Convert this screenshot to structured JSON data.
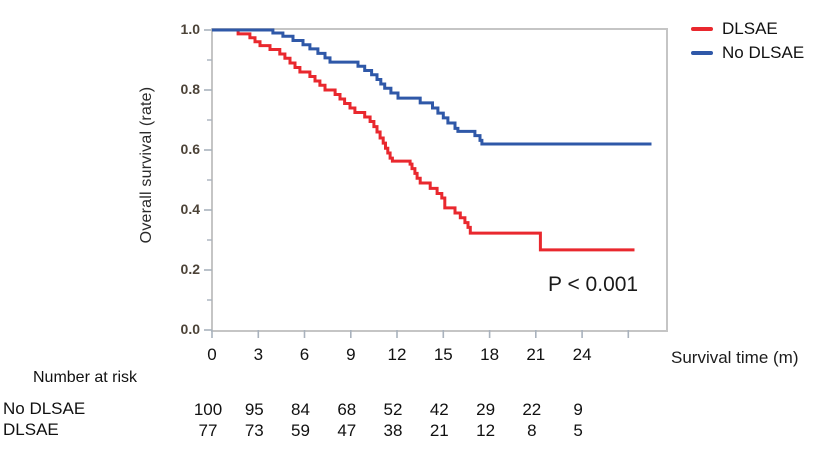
{
  "chart_data": {
    "type": "line",
    "subtype": "kaplan-meier-step",
    "title": "",
    "xlabel": "Survival time (m)",
    "ylabel": "Overall survival (rate)",
    "xlim": [
      0,
      29.5
    ],
    "ylim": [
      0.0,
      1.0
    ],
    "grid": false,
    "legend_position": "top-right-outside",
    "annotation": "P < 0.001",
    "yticks": [
      1.0,
      0.8,
      0.6,
      0.4,
      0.2,
      0.0
    ],
    "ytick_labels": [
      "1.0",
      "0.8",
      "0.6",
      "0.4",
      "0.2",
      "0.0"
    ],
    "yticks_minor": [
      0.9,
      0.7,
      0.5,
      0.3,
      0.1
    ],
    "xticks": [
      0,
      3,
      6,
      9,
      12,
      15,
      18,
      21,
      24,
      27
    ],
    "xtick_labels": [
      "0",
      "3",
      "6",
      "9",
      "12",
      "15",
      "18",
      "21",
      "24",
      ""
    ],
    "series": [
      {
        "name": "DLSAE",
        "color": "#e9282e",
        "end_t": 27.4,
        "steps": [
          [
            0,
            1.0
          ],
          [
            1.69,
            0.987
          ],
          [
            2.46,
            0.974
          ],
          [
            2.79,
            0.961
          ],
          [
            3.11,
            0.948
          ],
          [
            3.76,
            0.935
          ],
          [
            4.4,
            0.92
          ],
          [
            4.73,
            0.906
          ],
          [
            5.06,
            0.89
          ],
          [
            5.38,
            0.875
          ],
          [
            5.7,
            0.86
          ],
          [
            6.35,
            0.845
          ],
          [
            6.68,
            0.83
          ],
          [
            7.0,
            0.816
          ],
          [
            7.33,
            0.8
          ],
          [
            7.98,
            0.785
          ],
          [
            8.3,
            0.77
          ],
          [
            8.6,
            0.755
          ],
          [
            8.95,
            0.74
          ],
          [
            9.27,
            0.725
          ],
          [
            9.9,
            0.71
          ],
          [
            10.25,
            0.695
          ],
          [
            10.5,
            0.678
          ],
          [
            10.7,
            0.66
          ],
          [
            10.9,
            0.64
          ],
          [
            11.1,
            0.623
          ],
          [
            11.25,
            0.606
          ],
          [
            11.4,
            0.59
          ],
          [
            11.55,
            0.573
          ],
          [
            11.7,
            0.563
          ],
          [
            12.85,
            0.553
          ],
          [
            12.97,
            0.538
          ],
          [
            13.16,
            0.522
          ],
          [
            13.3,
            0.506
          ],
          [
            13.5,
            0.49
          ],
          [
            14.15,
            0.472
          ],
          [
            14.6,
            0.455
          ],
          [
            14.9,
            0.44
          ],
          [
            15.1,
            0.407
          ],
          [
            15.76,
            0.39
          ],
          [
            16.1,
            0.374
          ],
          [
            16.4,
            0.358
          ],
          [
            16.6,
            0.342
          ],
          [
            16.75,
            0.323
          ],
          [
            21.3,
            0.267
          ]
        ]
      },
      {
        "name": "No DLSAE",
        "color": "#2f58a8",
        "end_t": 28.5,
        "steps": [
          [
            0,
            1.0
          ],
          [
            3.95,
            0.99
          ],
          [
            4.6,
            0.979
          ],
          [
            5.25,
            0.965
          ],
          [
            5.9,
            0.951
          ],
          [
            6.35,
            0.937
          ],
          [
            6.87,
            0.922
          ],
          [
            7.33,
            0.907
          ],
          [
            7.65,
            0.893
          ],
          [
            9.47,
            0.879
          ],
          [
            9.9,
            0.865
          ],
          [
            10.35,
            0.851
          ],
          [
            10.7,
            0.835
          ],
          [
            10.95,
            0.82
          ],
          [
            11.2,
            0.806
          ],
          [
            11.6,
            0.79
          ],
          [
            12.06,
            0.773
          ],
          [
            13.5,
            0.757
          ],
          [
            14.3,
            0.74
          ],
          [
            14.65,
            0.723
          ],
          [
            15.0,
            0.707
          ],
          [
            15.3,
            0.69
          ],
          [
            15.76,
            0.672
          ],
          [
            15.95,
            0.662
          ],
          [
            17.05,
            0.648
          ],
          [
            17.38,
            0.632
          ],
          [
            17.5,
            0.62
          ]
        ]
      }
    ],
    "number_at_risk": {
      "header_label": "Number at risk",
      "times": [
        0,
        3,
        6,
        9,
        12,
        15,
        18,
        21,
        24
      ],
      "rows": [
        {
          "label": "No DLSAE",
          "counts": [
            100,
            95,
            84,
            68,
            52,
            42,
            29,
            22,
            9
          ]
        },
        {
          "label": "DLSAE",
          "counts": [
            77,
            73,
            59,
            47,
            38,
            21,
            12,
            8,
            5
          ]
        }
      ]
    },
    "colors": {
      "plot_border": "#c5c5c5",
      "tick_mark": "#a9b2bd",
      "ytick_text": "#4c4338",
      "text": "#111111"
    }
  }
}
